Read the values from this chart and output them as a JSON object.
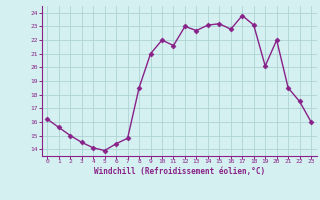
{
  "x": [
    0,
    1,
    2,
    3,
    4,
    5,
    6,
    7,
    8,
    9,
    10,
    11,
    12,
    13,
    14,
    15,
    16,
    17,
    18,
    19,
    20,
    21,
    22,
    23
  ],
  "y": [
    16.2,
    15.6,
    15.0,
    14.5,
    14.1,
    13.9,
    14.4,
    14.8,
    18.5,
    21.0,
    22.0,
    21.6,
    23.0,
    22.7,
    23.1,
    23.2,
    22.8,
    23.8,
    23.1,
    20.1,
    22.0,
    18.5,
    17.5,
    16.0
  ],
  "line_color": "#882288",
  "marker": "D",
  "marker_size": 2.5,
  "bg_color": "#d5f0f0",
  "grid_color": "#aed4d4",
  "xlabel": "Windchill (Refroidissement éolien,°C)",
  "xlabel_color": "#882288",
  "tick_color": "#882288",
  "ylim": [
    13.5,
    24.5
  ],
  "yticks": [
    14,
    15,
    16,
    17,
    18,
    19,
    20,
    21,
    22,
    23,
    24
  ],
  "xticks": [
    0,
    1,
    2,
    3,
    4,
    5,
    6,
    7,
    8,
    9,
    10,
    11,
    12,
    13,
    14,
    15,
    16,
    17,
    18,
    19,
    20,
    21,
    22,
    23
  ],
  "linewidth": 1.0
}
